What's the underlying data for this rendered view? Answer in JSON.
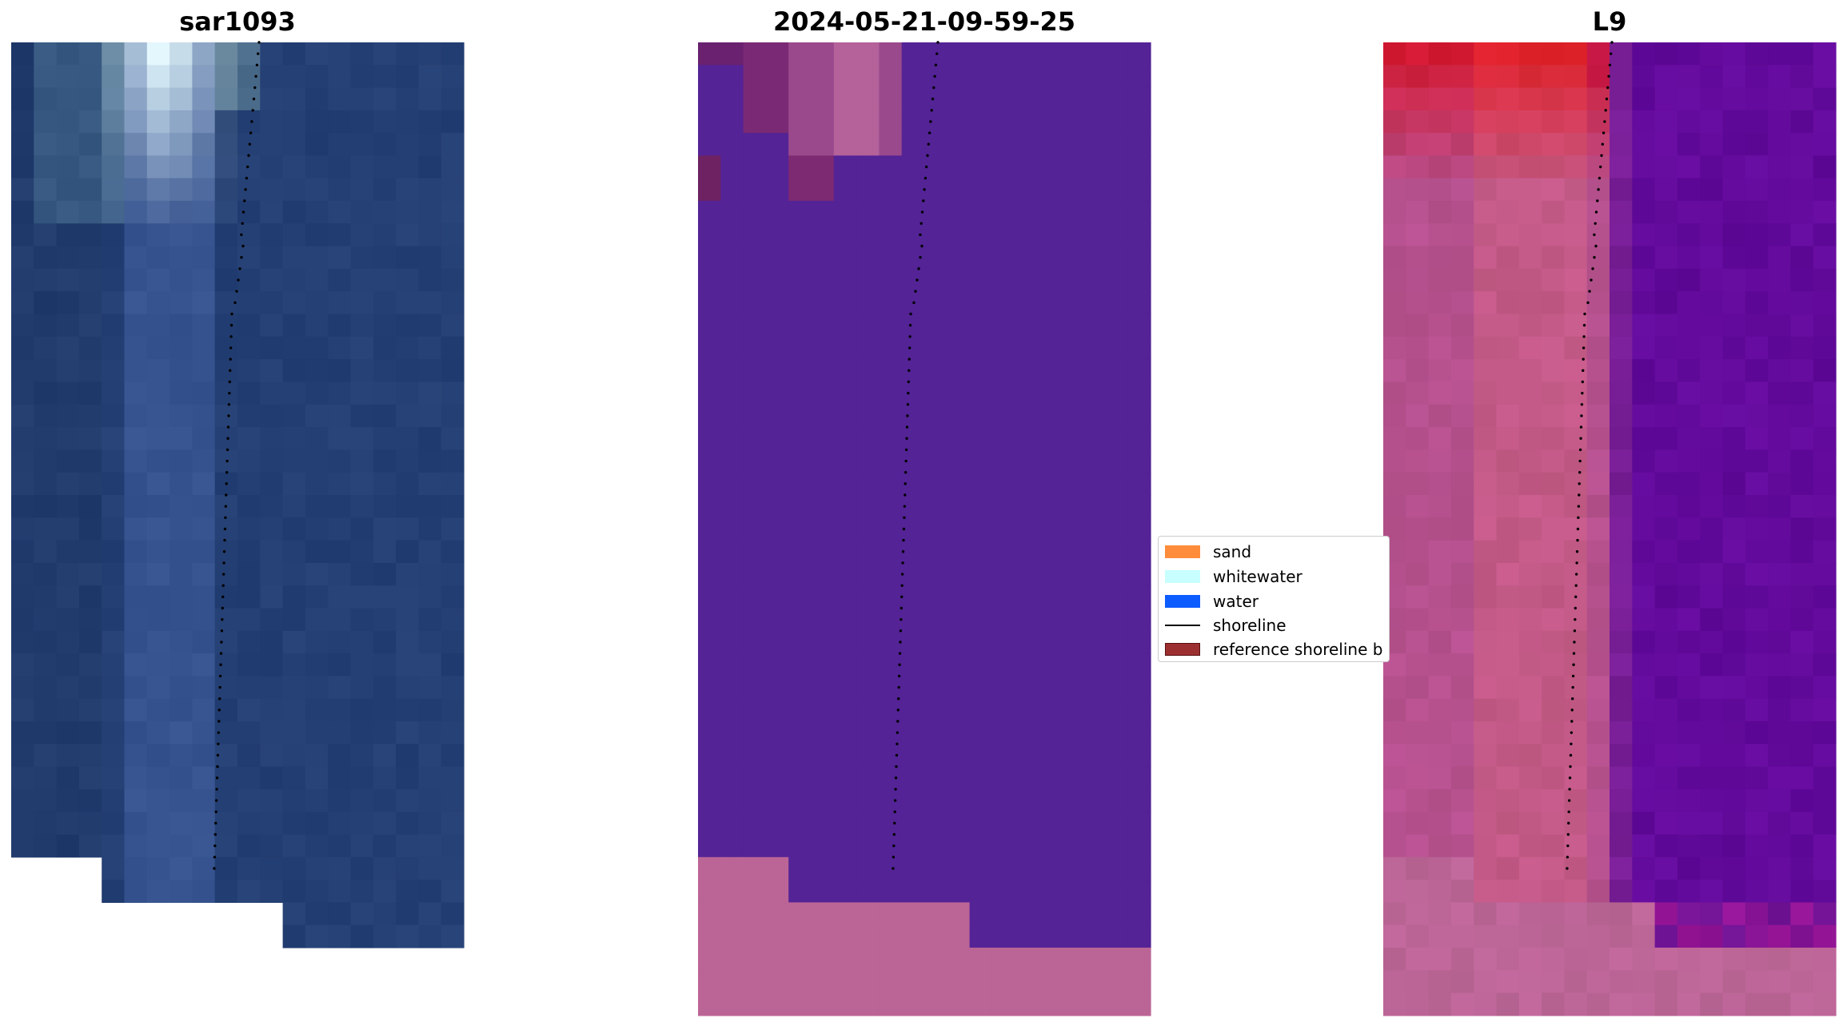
{
  "panels": [
    {
      "title": "sar1093"
    },
    {
      "title": "2024-05-21-09-59-25"
    },
    {
      "title": "L9"
    }
  ],
  "legend": {
    "items": [
      {
        "label": "sand",
        "color": "#ff8c3a",
        "kind": "patch"
      },
      {
        "label": "whitewater",
        "color": "#c8ffff",
        "kind": "patch"
      },
      {
        "label": "water",
        "color": "#0d5cff",
        "kind": "patch"
      },
      {
        "label": "shoreline",
        "color": "#000000",
        "kind": "line"
      },
      {
        "label": "reference shoreline b",
        "color": "#9c3030",
        "kind": "patch"
      }
    ]
  },
  "colors": {
    "rgb_water": "#243f73",
    "class_water": "#542396",
    "class_nodata": "#bb6596",
    "ndwi_water": "#5e0a98",
    "ndwi_sand": "#c0306a"
  }
}
